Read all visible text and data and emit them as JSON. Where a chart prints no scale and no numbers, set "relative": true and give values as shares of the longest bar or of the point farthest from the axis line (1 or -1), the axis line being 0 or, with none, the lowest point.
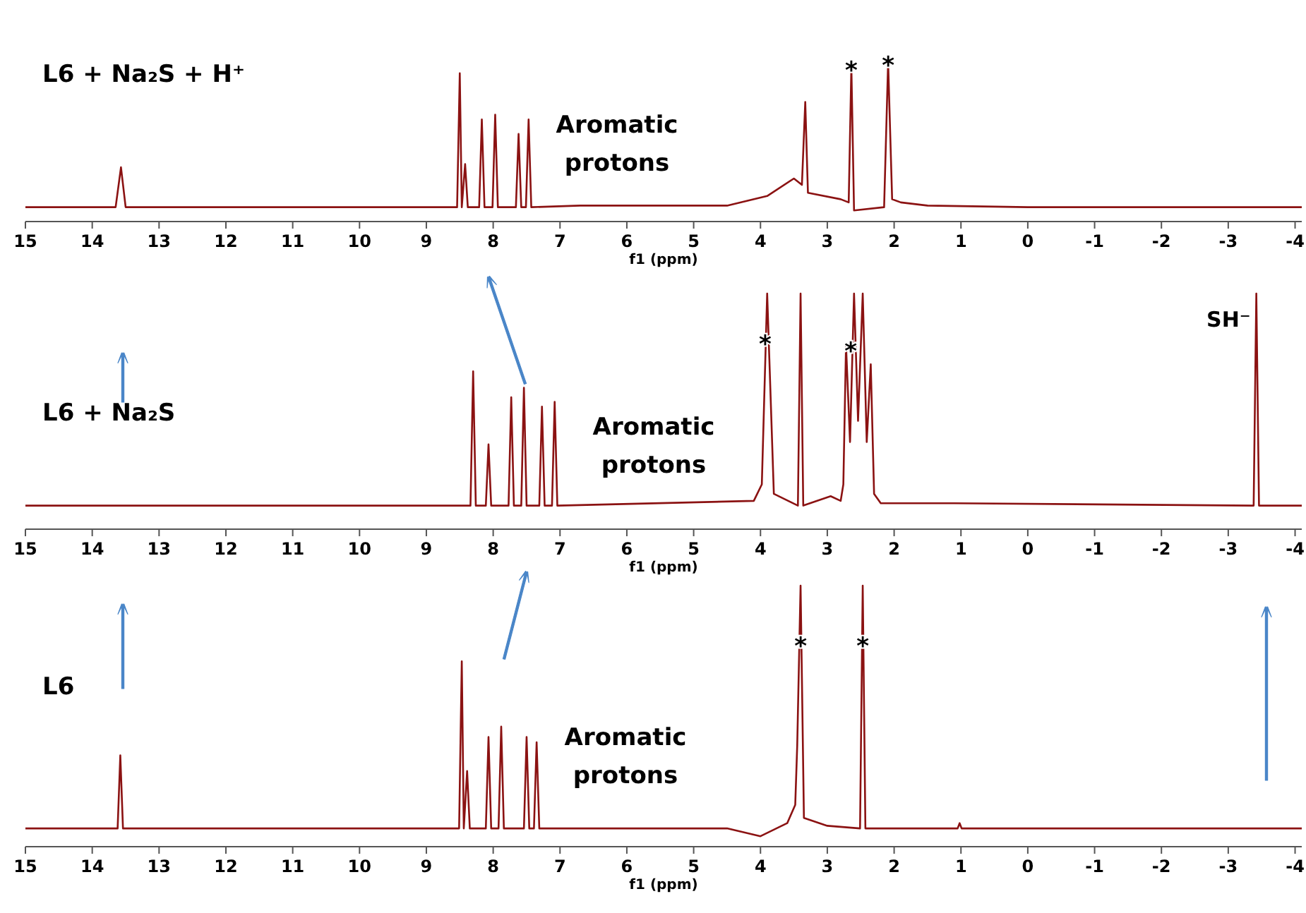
{
  "chart_data": [
    {
      "type": "line",
      "title": "L6 + Na₂S + H⁺",
      "xlabel": "f1 (ppm)",
      "relative": true,
      "xlim": [
        15,
        -4.1
      ],
      "xticks": [
        15,
        14,
        13,
        12,
        11,
        10,
        9,
        8,
        7,
        6,
        5,
        4,
        3,
        2,
        1,
        0,
        -1,
        -2,
        -3,
        -4
      ],
      "annotations": [
        "Aromatic protons",
        {
          "text": "*",
          "x": 2.64,
          "y": 0.97
        },
        {
          "text": "*",
          "x": 2.09,
          "y": 1
        }
      ],
      "series": [
        {
          "color": "#8b1212",
          "x": [
            15,
            13.65,
            13.57,
            13.5,
            9.5,
            8.54,
            8.5,
            8.47,
            8.42,
            8.38,
            8.21,
            8.17,
            8.13,
            8.01,
            7.97,
            7.93,
            7.66,
            7.62,
            7.58,
            7.51,
            7.47,
            7.43,
            6.7,
            4.5,
            3.9,
            3.5,
            3.38,
            3.33,
            3.29,
            2.8,
            2.68,
            2.64,
            2.6,
            2.15,
            2.09,
            2.03,
            1.9,
            1.5,
            0,
            -4.1
          ],
          "values": [
            0.09,
            0.09,
            0.34,
            0.09,
            0.09,
            0.09,
            0.93,
            0.09,
            0.36,
            0.09,
            0.09,
            0.64,
            0.09,
            0.09,
            0.67,
            0.09,
            0.09,
            0.55,
            0.09,
            0.09,
            0.64,
            0.09,
            0.1,
            0.1,
            0.16,
            0.27,
            0.23,
            0.75,
            0.18,
            0.14,
            0.12,
            0.97,
            0.07,
            0.09,
            1,
            0.14,
            0.12,
            0.1,
            0.09,
            0.09
          ]
        }
      ]
    },
    {
      "type": "line",
      "title": "L6 + Na₂S",
      "xlabel": "f1 (ppm)",
      "relative": true,
      "xlim": [
        15,
        -4.1
      ],
      "xticks": [
        15,
        14,
        13,
        12,
        11,
        10,
        9,
        8,
        7,
        6,
        5,
        4,
        3,
        2,
        1,
        0,
        -1,
        -2,
        -3,
        -4
      ],
      "annotations": [
        "Aromatic protons",
        {
          "text": "*",
          "x": 3.93,
          "y": 0.8
        },
        {
          "text": "*",
          "x": 2.65,
          "y": 0.77
        },
        {
          "text": "SH⁻",
          "x": -3.42,
          "y": 0.86
        }
      ],
      "series": [
        {
          "color": "#8b1212",
          "x": [
            15,
            8.34,
            8.3,
            8.26,
            8.11,
            8.07,
            8.03,
            7.77,
            7.73,
            7.69,
            7.58,
            7.54,
            7.5,
            7.31,
            7.27,
            7.23,
            7.12,
            7.08,
            7.04,
            4.1,
            3.98,
            3.9,
            3.8,
            3.44,
            3.4,
            3.36,
            2.95,
            2.8,
            2.76,
            2.72,
            2.66,
            2.6,
            2.54,
            2.47,
            2.41,
            2.35,
            2.3,
            2.2,
            1.1,
            -3.38,
            -3.42,
            -3.46,
            -4.1
          ],
          "values": [
            0.1,
            0.1,
            0.67,
            0.1,
            0.1,
            0.36,
            0.1,
            0.1,
            0.56,
            0.1,
            0.1,
            0.6,
            0.1,
            0.1,
            0.52,
            0.1,
            0.1,
            0.54,
            0.1,
            0.12,
            0.19,
            1,
            0.15,
            0.1,
            1,
            0.1,
            0.14,
            0.12,
            0.19,
            0.78,
            0.37,
            1,
            0.46,
            1,
            0.37,
            0.7,
            0.15,
            0.11,
            0.11,
            0.1,
            1,
            0.1,
            0.1
          ]
        }
      ]
    },
    {
      "type": "line",
      "title": "L6",
      "xlabel": "f1 (ppm)",
      "relative": true,
      "xlim": [
        15,
        -4.1
      ],
      "xticks": [
        15,
        14,
        13,
        12,
        11,
        10,
        9,
        8,
        7,
        6,
        5,
        4,
        3,
        2,
        1,
        0,
        -1,
        -2,
        -3,
        -4
      ],
      "annotations": [
        "Aromatic protons",
        {
          "text": "*",
          "x": 3.4,
          "y": 0.78
        },
        {
          "text": "*",
          "x": 2.47,
          "y": 0.78
        }
      ],
      "series": [
        {
          "color": "#8b1212",
          "x": [
            15,
            13.62,
            13.58,
            13.54,
            8.51,
            8.47,
            8.44,
            8.39,
            8.35,
            8.11,
            8.07,
            8.03,
            7.92,
            7.88,
            7.84,
            7.54,
            7.5,
            7.46,
            7.39,
            7.35,
            7.31,
            4.5,
            4.0,
            3.6,
            3.48,
            3.45,
            3.4,
            3.35,
            3.0,
            2.51,
            2.47,
            2.43,
            1.05,
            1.02,
            0.99,
            -4.1
          ],
          "values": [
            0.07,
            0.07,
            0.35,
            0.07,
            0.07,
            0.71,
            0.07,
            0.29,
            0.07,
            0.07,
            0.42,
            0.07,
            0.07,
            0.46,
            0.07,
            0.07,
            0.42,
            0.07,
            0.07,
            0.4,
            0.07,
            0.07,
            0.04,
            0.09,
            0.16,
            0.39,
            1,
            0.11,
            0.08,
            0.07,
            1,
            0.07,
            0.07,
            0.09,
            0.07,
            0.07
          ]
        }
      ]
    }
  ]
}
